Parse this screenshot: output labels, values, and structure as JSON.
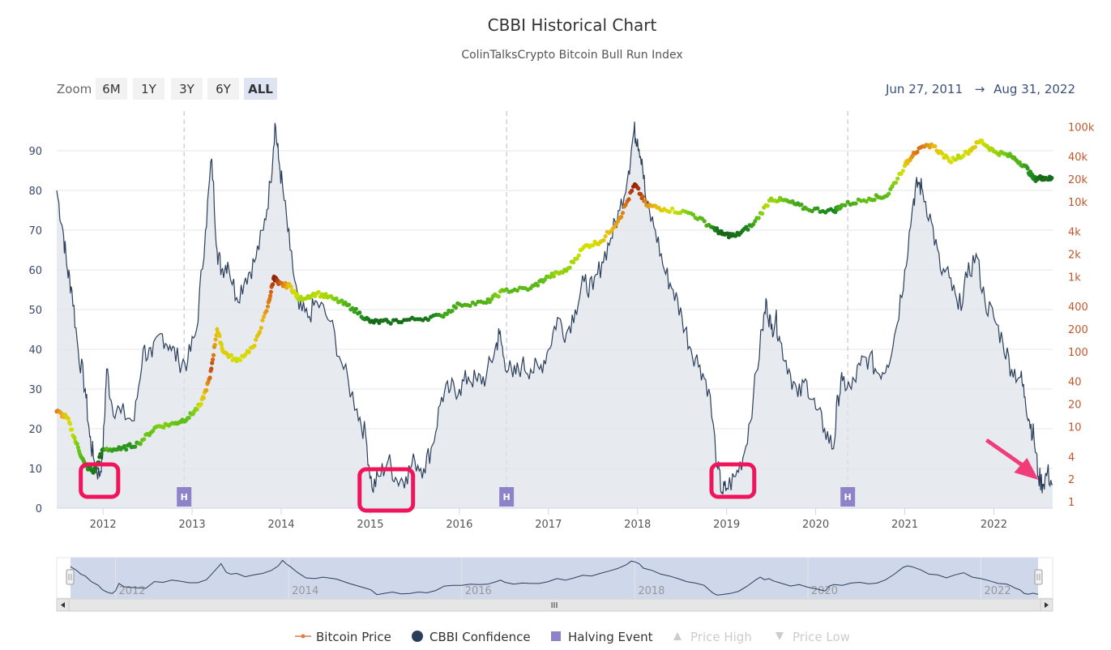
{
  "colors": {
    "confidence_line": "#2b3f5c",
    "area_fill": "#dde2ea",
    "halving": "#8e83c8",
    "highlight": "#f0145a",
    "arrow": "#f03c78",
    "right_axis": "#c0582c",
    "zoom_active": "#dfe4f3",
    "zoom_bg": "#f2f2f2",
    "navigator_fill": "#c7d0e6"
  },
  "zoom": {
    "label": "Zoom",
    "buttons": [
      "6M",
      "1Y",
      "3Y",
      "6Y",
      "ALL"
    ],
    "active": "ALL"
  },
  "range": {
    "from": "Jun 27, 2011",
    "arrow": "→",
    "to": "Aug 31, 2022"
  },
  "legend": [
    {
      "label": "Bitcoin Price",
      "icon": "line-dot-icon",
      "enabled": true
    },
    {
      "label": "CBBI Confidence",
      "icon": "circle-icon",
      "enabled": true
    },
    {
      "label": "Halving Event",
      "icon": "square-icon",
      "enabled": true
    },
    {
      "label": "Price High",
      "icon": "triangle-up-icon",
      "enabled": false
    },
    {
      "label": "Price Low",
      "icon": "triangle-down-icon",
      "enabled": false
    }
  ],
  "chart_data": {
    "type": "line",
    "title": "CBBI Historical Chart",
    "subtitle": "ColinTalksCrypto Bitcoin Bull Run Index",
    "x_range": [
      2011.48,
      2022.66
    ],
    "x_ticks": [
      2012,
      2013,
      2014,
      2015,
      2016,
      2017,
      2018,
      2019,
      2020,
      2021,
      2022
    ],
    "x_tick_labels": [
      "2012",
      "2013",
      "2014",
      "2015",
      "2016",
      "2017",
      "2018",
      "2019",
      "2020",
      "2021",
      "2022"
    ],
    "y_left_range": [
      0,
      100
    ],
    "y_left_ticks": [
      0,
      10,
      20,
      30,
      40,
      50,
      60,
      70,
      80,
      90
    ],
    "y_right_scale": "log",
    "y_right_range": [
      1,
      150000
    ],
    "y_right_ticks": [
      1,
      2,
      4,
      10,
      20,
      40,
      100,
      200,
      400,
      1000,
      2000,
      4000,
      10000,
      20000,
      40000,
      100000
    ],
    "y_right_tick_labels": [
      "1",
      "2",
      "4",
      "10",
      "20",
      "40",
      "100",
      "200",
      "400",
      "1k",
      "2k",
      "4k",
      "10k",
      "20k",
      "40k",
      "100k"
    ],
    "series": [
      {
        "name": "CBBI Confidence",
        "axis": "left",
        "x": [
          2011.48,
          2011.55,
          2011.6,
          2011.65,
          2011.72,
          2011.8,
          2011.85,
          2011.9,
          2011.96,
          2012.0,
          2012.04,
          2012.1,
          2012.2,
          2012.35,
          2012.45,
          2012.55,
          2012.65,
          2012.75,
          2012.85,
          2012.95,
          2013.05,
          2013.15,
          2013.22,
          2013.28,
          2013.33,
          2013.4,
          2013.5,
          2013.6,
          2013.7,
          2013.8,
          2013.88,
          2013.93,
          2013.97,
          2014.02,
          2014.1,
          2014.2,
          2014.3,
          2014.4,
          2014.55,
          2014.7,
          2014.85,
          2014.95,
          2015.02,
          2015.1,
          2015.2,
          2015.3,
          2015.4,
          2015.5,
          2015.6,
          2015.7,
          2015.8,
          2015.9,
          2016.0,
          2016.1,
          2016.2,
          2016.3,
          2016.4,
          2016.45,
          2016.5,
          2016.6,
          2016.7,
          2016.8,
          2016.9,
          2017.0,
          2017.1,
          2017.2,
          2017.3,
          2017.4,
          2017.5,
          2017.6,
          2017.7,
          2017.8,
          2017.9,
          2017.96,
          2018.0,
          2018.05,
          2018.1,
          2018.2,
          2018.3,
          2018.4,
          2018.5,
          2018.6,
          2018.7,
          2018.8,
          2018.9,
          2018.95,
          2019.0,
          2019.1,
          2019.2,
          2019.3,
          2019.4,
          2019.45,
          2019.5,
          2019.55,
          2019.6,
          2019.7,
          2019.8,
          2019.9,
          2020.0,
          2020.1,
          2020.2,
          2020.25,
          2020.3,
          2020.4,
          2020.5,
          2020.6,
          2020.7,
          2020.8,
          2020.9,
          2021.0,
          2021.1,
          2021.15,
          2021.2,
          2021.3,
          2021.4,
          2021.5,
          2021.6,
          2021.7,
          2021.8,
          2021.9,
          2022.0,
          2022.1,
          2022.2,
          2022.3,
          2022.35,
          2022.4,
          2022.45,
          2022.5,
          2022.55,
          2022.6,
          2022.66
        ],
        "values": [
          80,
          70,
          60,
          55,
          40,
          30,
          18,
          12,
          8,
          15,
          35,
          26,
          24,
          22,
          40,
          38,
          44,
          41,
          37,
          37,
          45,
          70,
          88,
          65,
          60,
          62,
          53,
          58,
          62,
          70,
          82,
          97,
          88,
          80,
          65,
          50,
          48,
          52,
          47,
          35,
          25,
          18,
          5,
          8,
          12,
          7,
          8,
          12,
          10,
          16,
          28,
          30,
          30,
          33,
          32,
          33,
          40,
          44,
          38,
          33,
          36,
          35,
          35,
          40,
          48,
          44,
          50,
          57,
          55,
          62,
          68,
          75,
          85,
          95,
          93,
          88,
          76,
          70,
          60,
          55,
          48,
          40,
          36,
          30,
          10,
          4,
          5,
          8,
          14,
          28,
          45,
          52,
          45,
          48,
          42,
          35,
          28,
          32,
          25,
          20,
          15,
          28,
          32,
          30,
          36,
          38,
          34,
          36,
          45,
          60,
          78,
          82,
          80,
          72,
          60,
          58,
          50,
          58,
          64,
          52,
          48,
          42,
          35,
          33,
          28,
          22,
          18,
          8,
          6,
          9,
          6
        ]
      },
      {
        "name": "Bitcoin Price",
        "axis": "right",
        "x": [
          2011.48,
          2011.6,
          2011.7,
          2011.8,
          2011.9,
          2012.0,
          2012.2,
          2012.4,
          2012.6,
          2012.8,
          2012.95,
          2013.1,
          2013.2,
          2013.28,
          2013.35,
          2013.5,
          2013.7,
          2013.85,
          2013.92,
          2013.97,
          2014.1,
          2014.2,
          2014.4,
          2014.6,
          2014.8,
          2015.0,
          2015.2,
          2015.5,
          2015.8,
          2016.0,
          2016.3,
          2016.5,
          2016.8,
          2017.0,
          2017.2,
          2017.4,
          2017.6,
          2017.8,
          2017.97,
          2018.1,
          2018.3,
          2018.6,
          2018.85,
          2018.95,
          2019.1,
          2019.3,
          2019.5,
          2019.7,
          2019.9,
          2020.2,
          2020.3,
          2020.6,
          2020.8,
          2021.0,
          2021.1,
          2021.3,
          2021.5,
          2021.7,
          2021.85,
          2022.0,
          2022.2,
          2022.35,
          2022.45,
          2022.55,
          2022.66
        ],
        "values": [
          16,
          13,
          6,
          3,
          2.5,
          5,
          5,
          6,
          10,
          11,
          13,
          20,
          45,
          200,
          100,
          75,
          120,
          400,
          1000,
          800,
          750,
          500,
          600,
          500,
          380,
          250,
          250,
          270,
          300,
          430,
          450,
          650,
          700,
          1000,
          1200,
          2500,
          3000,
          6000,
          17000,
          9000,
          8000,
          7000,
          4500,
          3700,
          3500,
          5000,
          11000,
          10000,
          8000,
          7500,
          9000,
          11000,
          12000,
          30000,
          45000,
          58000,
          35000,
          45000,
          65000,
          47000,
          40000,
          30000,
          20000,
          21000,
          20000
        ]
      }
    ],
    "halving_events": [
      {
        "x": 2012.91,
        "label": "H"
      },
      {
        "x": 2016.53,
        "label": "H"
      },
      {
        "x": 2020.36,
        "label": "H"
      }
    ],
    "annotations": [
      {
        "type": "box",
        "x_range": [
          2011.75,
          2012.17
        ],
        "label": ""
      },
      {
        "type": "box",
        "x_range": [
          2014.88,
          2015.48
        ],
        "label": ""
      },
      {
        "type": "box",
        "x_range": [
          2018.83,
          2019.31
        ],
        "label": ""
      },
      {
        "type": "arrow",
        "x": 2022.5,
        "label": ""
      }
    ],
    "navigator_x_labels": [
      "2012",
      "2014",
      "2016",
      "2018",
      "2020",
      "2022"
    ],
    "navigator_handle_glyph": "III"
  }
}
